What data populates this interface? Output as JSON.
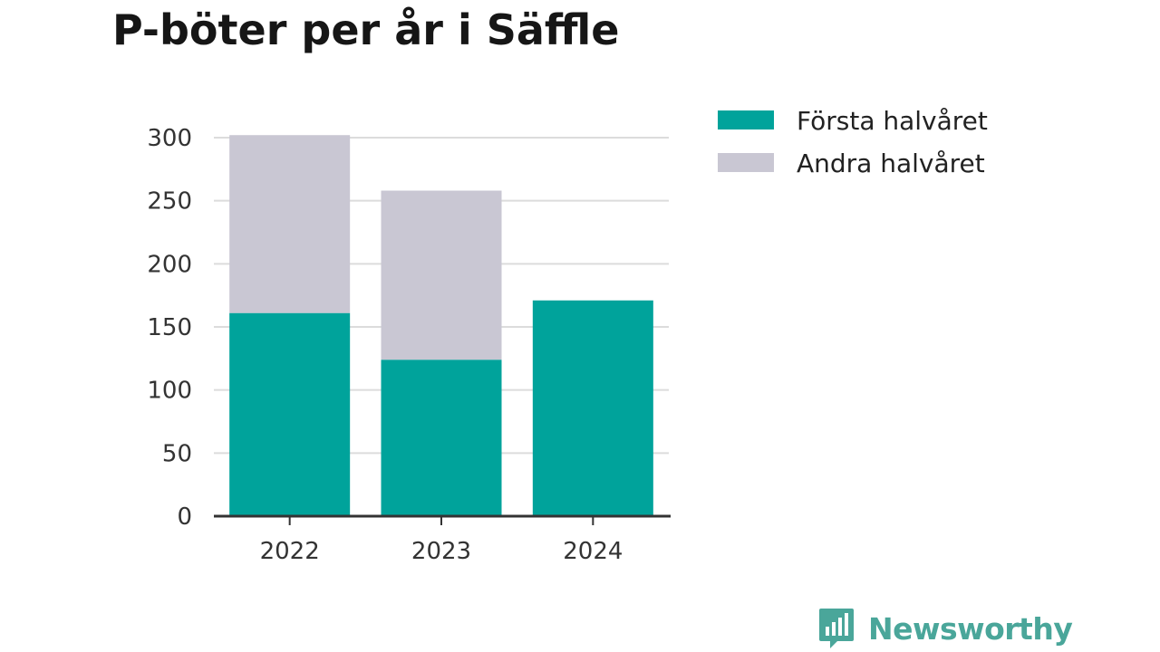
{
  "chart_data": {
    "type": "bar",
    "stacked": true,
    "title": "P-böter per år i Säffle",
    "categories": [
      "2022",
      "2023",
      "2024"
    ],
    "series": [
      {
        "name": "Första halvåret",
        "values": [
          161,
          124,
          171
        ],
        "color": "#00a39b"
      },
      {
        "name": "Andra halvåret",
        "values": [
          141,
          134,
          0
        ],
        "color": "#c9c7d3"
      }
    ],
    "yticks": [
      "0",
      "50",
      "100",
      "150",
      "200",
      "250",
      "300"
    ],
    "ylim": [
      0,
      300
    ],
    "grid": true,
    "legend": "right"
  },
  "brand": {
    "name": "Newsworthy",
    "icon": "bar-chart-speech-bubble-icon",
    "color": "#4aa69a"
  }
}
